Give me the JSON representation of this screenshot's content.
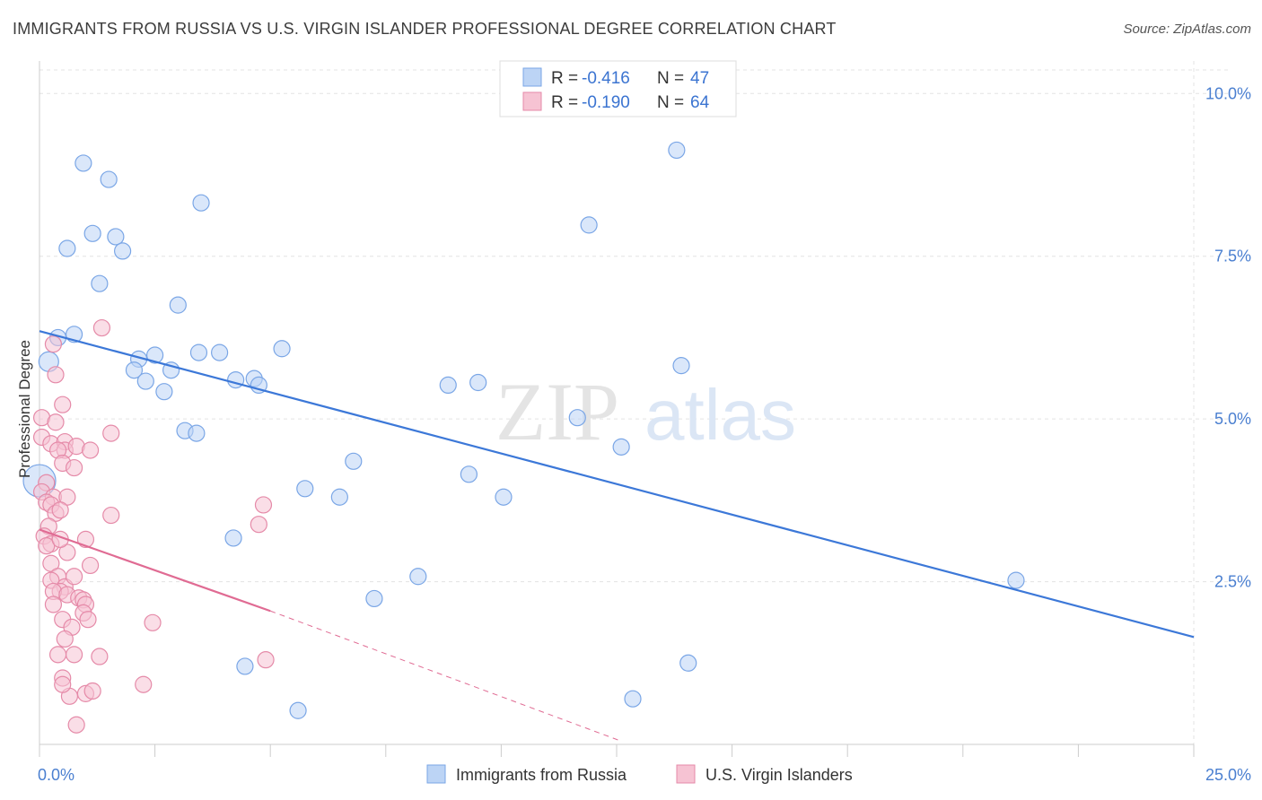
{
  "chart_data": {
    "type": "scatter",
    "title": "IMMIGRANTS FROM RUSSIA VS U.S. VIRGIN ISLANDER PROFESSIONAL DEGREE CORRELATION CHART",
    "source": "Source: ZipAtlas.com",
    "ylabel": "Professional Degree",
    "xlim": [
      0,
      25
    ],
    "ylim": [
      0,
      10.5
    ],
    "x_tick_labels": [
      {
        "value": 0,
        "label": "0.0%"
      },
      {
        "value": 25,
        "label": "25.0%"
      }
    ],
    "y_tick_labels": [
      {
        "value": 2.5,
        "label": "2.5%"
      },
      {
        "value": 5.0,
        "label": "5.0%"
      },
      {
        "value": 7.5,
        "label": "7.5%"
      },
      {
        "value": 10.0,
        "label": "10.0%"
      }
    ],
    "grid": true,
    "legend_top": [
      {
        "r_label": "R = ",
        "r_value": "-0.416",
        "n_label": "N = ",
        "n_value": "47"
      },
      {
        "r_label": "R = ",
        "r_value": "-0.190",
        "n_label": "N = ",
        "n_value": "64"
      }
    ],
    "watermark": {
      "zip": "ZIP",
      "atlas": "atlas"
    },
    "series": [
      {
        "name": "Immigrants from Russia",
        "color": "#7aa6e6",
        "fill": "#bcd4f5",
        "line_color": "#3c78d8",
        "trend": {
          "x0": 0,
          "y0": 6.35,
          "x1": 25,
          "y1": 1.65
        },
        "points": [
          [
            0.95,
            8.93
          ],
          [
            1.5,
            8.68
          ],
          [
            3.5,
            8.32
          ],
          [
            1.15,
            7.85
          ],
          [
            1.65,
            7.8
          ],
          [
            0.6,
            7.62
          ],
          [
            1.8,
            7.58
          ],
          [
            1.3,
            7.08
          ],
          [
            3.0,
            6.75
          ],
          [
            0.75,
            6.3
          ],
          [
            0.4,
            6.25
          ],
          [
            5.25,
            6.08
          ],
          [
            3.9,
            6.02
          ],
          [
            3.45,
            6.02
          ],
          [
            2.5,
            5.98
          ],
          [
            2.15,
            5.92
          ],
          [
            0.2,
            5.88
          ],
          [
            2.05,
            5.75
          ],
          [
            2.85,
            5.75
          ],
          [
            2.3,
            5.58
          ],
          [
            4.65,
            5.62
          ],
          [
            4.25,
            5.6
          ],
          [
            4.75,
            5.52
          ],
          [
            2.7,
            5.42
          ],
          [
            8.85,
            5.52
          ],
          [
            9.5,
            5.56
          ],
          [
            3.15,
            4.82
          ],
          [
            3.4,
            4.78
          ],
          [
            11.65,
            5.02
          ],
          [
            12.6,
            4.57
          ],
          [
            6.8,
            4.35
          ],
          [
            0.0,
            4.05
          ],
          [
            9.3,
            4.15
          ],
          [
            5.75,
            3.93
          ],
          [
            6.5,
            3.8
          ],
          [
            10.05,
            3.8
          ],
          [
            4.2,
            3.17
          ],
          [
            8.2,
            2.58
          ],
          [
            7.25,
            2.24
          ],
          [
            4.45,
            1.2
          ],
          [
            5.6,
            0.52
          ],
          [
            12.85,
            0.7
          ],
          [
            14.05,
            1.25
          ],
          [
            21.15,
            2.52
          ],
          [
            13.8,
            9.13
          ],
          [
            11.9,
            7.98
          ],
          [
            13.9,
            5.82
          ]
        ],
        "sizes": [
          9,
          9,
          9,
          9,
          9,
          9,
          9,
          9,
          9,
          9,
          9,
          9,
          9,
          9,
          9,
          9,
          11,
          9,
          9,
          9,
          9,
          9,
          9,
          9,
          9,
          9,
          9,
          9,
          9,
          9,
          9,
          18,
          9,
          9,
          9,
          9,
          9,
          9,
          9,
          9,
          9,
          9,
          9,
          9,
          9,
          9,
          9
        ]
      },
      {
        "name": "U.S. Virgin Islanders",
        "color": "#e58aa8",
        "fill": "#f6c3d3",
        "line_color": "#e06b93",
        "trend": {
          "x0": 0,
          "y0": 3.3,
          "x1": 5.0,
          "y1": 2.05
        },
        "trend_dashed": {
          "x0": 5.0,
          "y0": 2.05,
          "x1": 12.6,
          "y1": 0.05
        },
        "points": [
          [
            1.35,
            6.4
          ],
          [
            0.3,
            6.15
          ],
          [
            0.35,
            5.68
          ],
          [
            0.5,
            5.22
          ],
          [
            0.05,
            5.02
          ],
          [
            0.35,
            4.95
          ],
          [
            0.05,
            4.72
          ],
          [
            0.25,
            4.62
          ],
          [
            0.55,
            4.65
          ],
          [
            0.55,
            4.52
          ],
          [
            0.8,
            4.58
          ],
          [
            0.4,
            4.52
          ],
          [
            1.1,
            4.52
          ],
          [
            1.55,
            4.78
          ],
          [
            0.5,
            4.32
          ],
          [
            0.75,
            4.25
          ],
          [
            0.15,
            4.02
          ],
          [
            0.05,
            3.88
          ],
          [
            0.3,
            3.8
          ],
          [
            0.6,
            3.8
          ],
          [
            0.15,
            3.72
          ],
          [
            0.25,
            3.68
          ],
          [
            0.35,
            3.55
          ],
          [
            0.45,
            3.6
          ],
          [
            1.55,
            3.52
          ],
          [
            0.2,
            3.35
          ],
          [
            0.1,
            3.2
          ],
          [
            0.25,
            3.08
          ],
          [
            0.15,
            3.05
          ],
          [
            1.0,
            3.15
          ],
          [
            0.6,
            2.95
          ],
          [
            0.25,
            2.78
          ],
          [
            1.1,
            2.75
          ],
          [
            0.4,
            2.58
          ],
          [
            0.25,
            2.52
          ],
          [
            0.55,
            2.42
          ],
          [
            0.45,
            2.35
          ],
          [
            0.3,
            2.35
          ],
          [
            0.6,
            2.3
          ],
          [
            0.3,
            2.15
          ],
          [
            0.85,
            2.25
          ],
          [
            0.95,
            2.22
          ],
          [
            1.0,
            2.15
          ],
          [
            0.95,
            2.02
          ],
          [
            0.5,
            1.92
          ],
          [
            1.05,
            1.92
          ],
          [
            2.45,
            1.87
          ],
          [
            0.7,
            1.8
          ],
          [
            0.55,
            1.62
          ],
          [
            0.4,
            1.38
          ],
          [
            0.75,
            1.38
          ],
          [
            1.3,
            1.35
          ],
          [
            0.5,
            1.02
          ],
          [
            2.25,
            0.92
          ],
          [
            0.65,
            0.74
          ],
          [
            1.0,
            0.78
          ],
          [
            1.15,
            0.82
          ],
          [
            0.8,
            0.3
          ],
          [
            4.9,
            1.3
          ],
          [
            4.85,
            3.68
          ],
          [
            4.75,
            3.38
          ],
          [
            0.5,
            0.92
          ],
          [
            0.75,
            2.58
          ],
          [
            0.45,
            3.15
          ]
        ],
        "sizes": [
          9,
          9,
          9,
          9,
          9,
          9,
          9,
          9,
          9,
          9,
          9,
          9,
          9,
          9,
          9,
          9,
          9,
          9,
          9,
          9,
          9,
          9,
          9,
          9,
          9,
          9,
          9,
          9,
          9,
          9,
          9,
          9,
          9,
          9,
          9,
          9,
          9,
          9,
          9,
          9,
          9,
          9,
          9,
          9,
          9,
          9,
          9,
          9,
          9,
          9,
          9,
          9,
          9,
          9,
          9,
          9,
          9,
          9,
          9,
          9,
          9,
          9,
          9,
          9
        ]
      }
    ]
  }
}
